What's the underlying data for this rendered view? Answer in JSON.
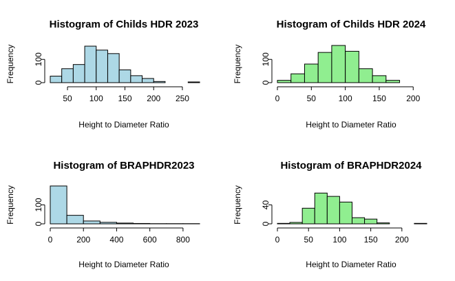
{
  "chart_data": [
    {
      "type": "bar",
      "title": "Histogram of Childs HDR 2023",
      "xlabel": "Height to Diameter Ratio",
      "ylabel": "Frequency",
      "xlim": [
        20,
        280
      ],
      "ylim": [
        0,
        160
      ],
      "xticks": [
        50,
        100,
        150,
        200,
        250
      ],
      "yticks": [
        0,
        100
      ],
      "fill_color": "#add8e6",
      "bin_edges": [
        20,
        40,
        60,
        80,
        100,
        120,
        140,
        160,
        180,
        200,
        220,
        240,
        260,
        280
      ],
      "values": [
        28,
        60,
        78,
        157,
        140,
        125,
        55,
        30,
        18,
        5,
        0,
        0,
        3
      ]
    },
    {
      "type": "bar",
      "title": "Histogram of Childs HDR 2024",
      "xlabel": "Height to Diameter Ratio",
      "ylabel": "Frequency",
      "xlim": [
        0,
        220
      ],
      "ylim": [
        0,
        160
      ],
      "xticks": [
        0,
        50,
        100,
        150,
        200
      ],
      "yticks": [
        0,
        100
      ],
      "fill_color": "#90ee90",
      "bin_edges": [
        0,
        20,
        40,
        60,
        80,
        100,
        120,
        140,
        160,
        180,
        200,
        220
      ],
      "values": [
        10,
        38,
        80,
        130,
        160,
        135,
        60,
        30,
        10,
        0,
        0
      ]
    },
    {
      "type": "bar",
      "title": "Histogram of BRAPHDR2023",
      "xlabel": "Height to Diameter Ratio",
      "ylabel": "Frequency",
      "xlim": [
        0,
        900
      ],
      "ylim": [
        0,
        200
      ],
      "xticks": [
        0,
        200,
        400,
        600,
        800
      ],
      "yticks": [
        0,
        100
      ],
      "fill_color": "#add8e6",
      "bin_edges": [
        0,
        100,
        200,
        300,
        400,
        500,
        600,
        700,
        800,
        900
      ],
      "values": [
        200,
        45,
        15,
        8,
        4,
        2,
        1,
        1,
        1
      ]
    },
    {
      "type": "bar",
      "title": "Histogram of BRAPHDR2024",
      "xlabel": "Height to Diameter Ratio",
      "ylabel": "Frequency",
      "xlim": [
        0,
        240
      ],
      "ylim": [
        0,
        80
      ],
      "xticks": [
        0,
        50,
        100,
        150,
        200
      ],
      "yticks": [
        0,
        40
      ],
      "fill_color": "#90ee90",
      "bin_edges": [
        0,
        20,
        40,
        60,
        80,
        100,
        120,
        140,
        160,
        180,
        200,
        220,
        240
      ],
      "values": [
        1,
        3,
        33,
        65,
        58,
        46,
        13,
        10,
        2,
        0,
        0,
        1
      ]
    }
  ]
}
